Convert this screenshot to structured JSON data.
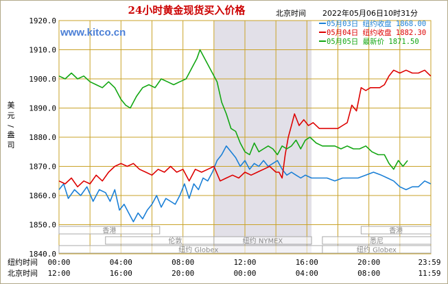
{
  "header": {
    "title": "24小时黄金现货买入价格",
    "tz_label": "北京时间",
    "datetime": "2022年05月06日10时31分",
    "watermark": "www.kitco.cn"
  },
  "colors": {
    "series_0503": "#1a7fd6",
    "series_0504": "#dd0000",
    "series_0505": "#12a612",
    "grid": "#c9a227",
    "band": "#e2e0e8",
    "text": "#000000",
    "title": "#cc0000",
    "watermark": "#4b7fd6"
  },
  "chart_data": {
    "type": "line",
    "title": "24小时黄金现货买入价格",
    "ylabel": "美元/盎司",
    "ylim": [
      1840,
      1920
    ],
    "yticks": [
      "1920.0",
      "1910.0",
      "1900.0",
      "1890.0",
      "1880.0",
      "1870.0",
      "1860.0",
      "1850.0",
      "1840.0"
    ],
    "x_range_hours": [
      0,
      24
    ],
    "x_rows": [
      {
        "label": "纽约时间",
        "ticks": [
          "00:00",
          "04:00",
          "08:00",
          "12:00",
          "16:00",
          "20:00",
          "23:59"
        ]
      },
      {
        "label": "北京时间",
        "ticks": [
          "12:00",
          "16:00",
          "20:00",
          "00:00",
          "04:00",
          "08:00",
          "11:59"
        ]
      }
    ],
    "legend": [
      {
        "date": "05月03日",
        "label": "纽约收盘",
        "value": "1868.00",
        "color": "#1a7fd6"
      },
      {
        "date": "05月04日",
        "label": "纽约收盘",
        "value": "1882.30",
        "color": "#dd0000"
      },
      {
        "date": "05月05日",
        "label": "最新价",
        "value": "1871.50",
        "color": "#12a612"
      }
    ],
    "highlight_band_hours": [
      10.0,
      16.3
    ],
    "market_sessions": [
      {
        "name": "香港",
        "start": 0.0,
        "end": 6.5,
        "row": 0
      },
      {
        "name": "伦敦",
        "start": 3.0,
        "end": 12.0,
        "row": 1
      },
      {
        "name": "纽约 NYMEX",
        "start": 10.0,
        "end": 16.3,
        "row": 1
      },
      {
        "name": "纽约 Globex",
        "start": 0.0,
        "end": 18.0,
        "row": 2
      },
      {
        "name": "纽约 Globex",
        "start": 17.0,
        "end": 24.0,
        "row": 2
      },
      {
        "name": "香港",
        "start": 19.5,
        "end": 24.0,
        "row": 0
      },
      {
        "name": "悉尼",
        "start": 17.0,
        "end": 24.0,
        "row": 1
      }
    ],
    "series": [
      {
        "name": "05月03日",
        "color": "#1a7fd6",
        "x": [
          0,
          0.3,
          0.6,
          1.0,
          1.4,
          1.8,
          2.2,
          2.6,
          3.0,
          3.3,
          3.6,
          3.9,
          4.2,
          4.5,
          4.8,
          5.1,
          5.4,
          5.7,
          6.0,
          6.3,
          6.6,
          6.9,
          7.2,
          7.5,
          7.8,
          8.1,
          8.4,
          8.7,
          9.0,
          9.3,
          9.6,
          9.9,
          10.2,
          10.5,
          10.8,
          11.1,
          11.4,
          11.7,
          12.0,
          12.3,
          12.6,
          12.9,
          13.2,
          13.5,
          13.8,
          14.1,
          14.4,
          14.7,
          15.0,
          15.3,
          15.6,
          15.9,
          16.3,
          16.8,
          17.3,
          17.8,
          18.3,
          18.8,
          19.3,
          19.8,
          20.3,
          20.8,
          21.2,
          21.6,
          22.0,
          22.4,
          22.8,
          23.2,
          23.6,
          23.99
        ],
        "y": [
          1862,
          1864,
          1859,
          1862,
          1860,
          1863,
          1858,
          1862,
          1861,
          1858,
          1862,
          1855,
          1857,
          1854,
          1851,
          1854,
          1852,
          1855,
          1857,
          1860,
          1856,
          1859,
          1858,
          1857,
          1860,
          1864,
          1859,
          1864,
          1862,
          1866,
          1865,
          1868,
          1872,
          1874,
          1877,
          1875,
          1873,
          1870,
          1872,
          1869,
          1871,
          1870,
          1872,
          1870,
          1871,
          1872,
          1869,
          1867,
          1868,
          1867,
          1866,
          1867,
          1866,
          1866,
          1866,
          1865,
          1866,
          1866,
          1866,
          1867,
          1868,
          1867,
          1866,
          1865,
          1863,
          1862,
          1863,
          1863,
          1865,
          1864
        ]
      },
      {
        "name": "05月04日",
        "color": "#dd0000",
        "x": [
          0,
          0.4,
          0.8,
          1.2,
          1.6,
          2.0,
          2.4,
          2.8,
          3.2,
          3.6,
          4.0,
          4.4,
          4.8,
          5.2,
          5.6,
          6.0,
          6.4,
          6.8,
          7.2,
          7.6,
          8.0,
          8.4,
          8.8,
          9.2,
          9.6,
          10.0,
          10.4,
          10.8,
          11.2,
          11.6,
          12.0,
          12.4,
          12.8,
          13.2,
          13.6,
          14.0,
          14.2,
          14.4,
          14.6,
          14.8,
          15.0,
          15.2,
          15.5,
          15.8,
          16.1,
          16.4,
          16.8,
          17.2,
          17.6,
          18.0,
          18.3,
          18.6,
          18.9,
          19.2,
          19.5,
          19.8,
          20.1,
          20.4,
          20.7,
          21.0,
          21.3,
          21.6,
          22.0,
          22.4,
          22.8,
          23.2,
          23.6,
          23.99
        ],
        "y": [
          1865,
          1864,
          1866,
          1863,
          1865,
          1864,
          1867,
          1865,
          1868,
          1870,
          1871,
          1870,
          1871,
          1869,
          1868,
          1867,
          1869,
          1868,
          1870,
          1868,
          1869,
          1865,
          1869,
          1868,
          1869,
          1870,
          1865,
          1866,
          1867,
          1866,
          1868,
          1867,
          1868,
          1869,
          1870,
          1868,
          1868,
          1866,
          1874,
          1880,
          1884,
          1888,
          1884,
          1886,
          1884,
          1885,
          1883,
          1883,
          1883,
          1883,
          1884,
          1885,
          1891,
          1889,
          1897,
          1896,
          1897,
          1897,
          1897,
          1898,
          1901,
          1903,
          1902,
          1903,
          1902,
          1902,
          1903,
          1901
        ]
      },
      {
        "name": "05月05日",
        "color": "#12a612",
        "x": [
          0,
          0.4,
          0.8,
          1.2,
          1.6,
          2.0,
          2.4,
          2.8,
          3.2,
          3.6,
          4.0,
          4.3,
          4.6,
          5.0,
          5.4,
          5.8,
          6.2,
          6.6,
          7.0,
          7.4,
          7.8,
          8.2,
          8.6,
          8.9,
          9.1,
          9.3,
          9.6,
          9.9,
          10.2,
          10.5,
          10.8,
          11.1,
          11.4,
          11.7,
          12.0,
          12.3,
          12.6,
          12.9,
          13.2,
          13.5,
          13.8,
          14.1,
          14.4,
          14.7,
          15.0,
          15.3,
          15.6,
          15.9,
          16.2,
          16.6,
          17.0,
          17.4,
          17.8,
          18.2,
          18.6,
          19.0,
          19.4,
          19.8,
          20.2,
          20.6,
          21.0,
          21.3,
          21.6,
          21.9,
          22.2,
          22.5
        ],
        "y": [
          1901,
          1900,
          1902,
          1900,
          1901,
          1899,
          1898,
          1897,
          1899,
          1897,
          1893,
          1891,
          1890,
          1894,
          1897,
          1898,
          1897,
          1900,
          1899,
          1898,
          1899,
          1900,
          1904,
          1907,
          1910,
          1908,
          1905,
          1902,
          1899,
          1892,
          1888,
          1883,
          1882,
          1878,
          1875,
          1874,
          1878,
          1875,
          1876,
          1877,
          1876,
          1874,
          1877,
          1876,
          1877,
          1879,
          1876,
          1879,
          1880,
          1878,
          1877,
          1877,
          1877,
          1876,
          1877,
          1876,
          1876,
          1877,
          1875,
          1874,
          1874,
          1871,
          1869,
          1872,
          1870,
          1872
        ]
      }
    ]
  }
}
